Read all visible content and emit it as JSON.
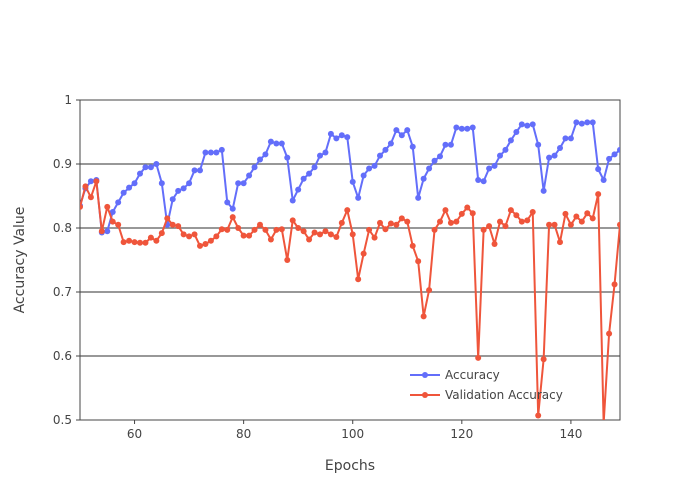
{
  "chart_data": {
    "type": "line",
    "title": "",
    "xlabel": "Epochs",
    "ylabel": "Accuracy Value",
    "xlim": [
      50,
      149
    ],
    "ylim": [
      0.5,
      1.0
    ],
    "grid": {
      "x": false,
      "y": true
    },
    "xticks": [
      60,
      80,
      100,
      120,
      140
    ],
    "yticks": [
      0.5,
      0.6,
      0.7,
      0.8,
      0.9,
      1.0
    ],
    "ytick_labels": [
      "0.5",
      "0.6",
      "0.7",
      "0.8",
      "0.9",
      "1"
    ],
    "legend_position": "bottom-right",
    "x": [
      50,
      51,
      52,
      53,
      54,
      55,
      56,
      57,
      58,
      59,
      60,
      61,
      62,
      63,
      64,
      65,
      66,
      67,
      68,
      69,
      70,
      71,
      72,
      73,
      74,
      75,
      76,
      77,
      78,
      79,
      80,
      81,
      82,
      83,
      84,
      85,
      86,
      87,
      88,
      89,
      90,
      91,
      92,
      93,
      94,
      95,
      96,
      97,
      98,
      99,
      100,
      101,
      102,
      103,
      104,
      105,
      106,
      107,
      108,
      109,
      110,
      111,
      112,
      113,
      114,
      115,
      116,
      117,
      118,
      119,
      120,
      121,
      122,
      123,
      124,
      125,
      126,
      127,
      128,
      129,
      130,
      131,
      132,
      133,
      134,
      135,
      136,
      137,
      138,
      139,
      140,
      141,
      142,
      143,
      144,
      145,
      146,
      147,
      148,
      149
    ],
    "series": [
      {
        "name": "Accuracy",
        "color": "#636efa",
        "values": [
          0.835,
          0.862,
          0.873,
          0.875,
          0.793,
          0.795,
          0.825,
          0.84,
          0.855,
          0.863,
          0.87,
          0.885,
          0.895,
          0.895,
          0.9,
          0.87,
          0.805,
          0.845,
          0.858,
          0.862,
          0.87,
          0.89,
          0.89,
          0.918,
          0.918,
          0.918,
          0.922,
          0.84,
          0.83,
          0.87,
          0.87,
          0.882,
          0.895,
          0.907,
          0.915,
          0.935,
          0.932,
          0.932,
          0.91,
          0.843,
          0.86,
          0.877,
          0.885,
          0.895,
          0.913,
          0.918,
          0.947,
          0.94,
          0.945,
          0.942,
          0.872,
          0.847,
          0.882,
          0.893,
          0.897,
          0.913,
          0.922,
          0.932,
          0.953,
          0.945,
          0.953,
          0.927,
          0.847,
          0.877,
          0.893,
          0.905,
          0.912,
          0.93,
          0.93,
          0.957,
          0.955,
          0.955,
          0.957,
          0.875,
          0.873,
          0.893,
          0.897,
          0.913,
          0.922,
          0.937,
          0.95,
          0.962,
          0.96,
          0.962,
          0.93,
          0.858,
          0.91,
          0.913,
          0.925,
          0.94,
          0.94,
          0.965,
          0.963,
          0.965,
          0.965,
          0.892,
          0.875,
          0.908,
          0.915,
          0.922
        ]
      },
      {
        "name": "Validation Accuracy",
        "color": "#ef553b",
        "values": [
          0.833,
          0.865,
          0.848,
          0.873,
          0.795,
          0.833,
          0.81,
          0.805,
          0.778,
          0.78,
          0.778,
          0.777,
          0.777,
          0.785,
          0.78,
          0.792,
          0.815,
          0.805,
          0.803,
          0.79,
          0.787,
          0.79,
          0.772,
          0.775,
          0.78,
          0.787,
          0.798,
          0.797,
          0.817,
          0.8,
          0.788,
          0.788,
          0.797,
          0.805,
          0.797,
          0.782,
          0.797,
          0.798,
          0.75,
          0.812,
          0.8,
          0.795,
          0.782,
          0.793,
          0.79,
          0.795,
          0.79,
          0.786,
          0.808,
          0.828,
          0.79,
          0.72,
          0.76,
          0.797,
          0.785,
          0.808,
          0.798,
          0.807,
          0.805,
          0.815,
          0.81,
          0.772,
          0.748,
          0.662,
          0.703,
          0.797,
          0.81,
          0.828,
          0.808,
          0.81,
          0.822,
          0.832,
          0.823,
          0.597,
          0.797,
          0.803,
          0.775,
          0.81,
          0.803,
          0.828,
          0.82,
          0.81,
          0.812,
          0.825,
          0.507,
          0.595,
          0.805,
          0.805,
          0.778,
          0.822,
          0.805,
          0.818,
          0.81,
          0.823,
          0.815,
          0.853,
          0.495,
          0.635,
          0.712,
          0.805
        ]
      }
    ]
  }
}
